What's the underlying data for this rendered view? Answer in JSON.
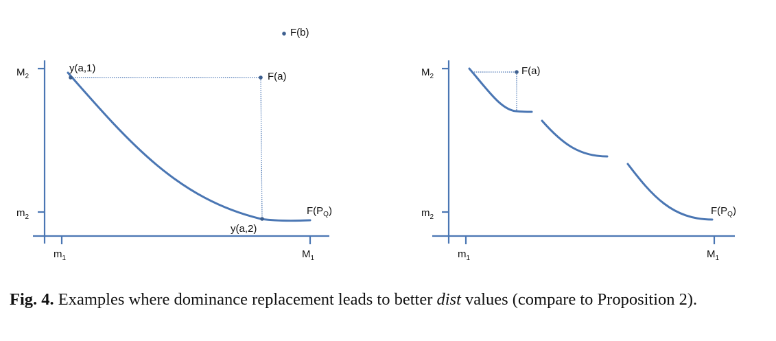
{
  "left_panel": {
    "y_tick_upper": {
      "base": "M",
      "sub": "2"
    },
    "y_tick_lower": {
      "base": "m",
      "sub": "2"
    },
    "x_tick_left": {
      "base": "m",
      "sub": "1"
    },
    "x_tick_right": {
      "base": "M",
      "sub": "1"
    },
    "points": {
      "F_b": "F(b)",
      "F_a": "F(a)",
      "y_a1": "y(a,1)",
      "y_a2": "y(a,2)",
      "F_PQ": {
        "base": "F(P",
        "sub": "Q",
        "end": ")"
      }
    }
  },
  "right_panel": {
    "y_tick_upper": {
      "base": "M",
      "sub": "2"
    },
    "y_tick_lower": {
      "base": "m",
      "sub": "2"
    },
    "x_tick_left": {
      "base": "m",
      "sub": "1"
    },
    "x_tick_right": {
      "base": "M",
      "sub": "1"
    },
    "points": {
      "F_a": "F(a)",
      "F_PQ": {
        "base": "F(P",
        "sub": "Q",
        "end": ")"
      }
    }
  },
  "caption": {
    "label": "Fig. 4.",
    "text_before": " Examples where dominance replacement leads to better ",
    "italic": "dist",
    "text_after": " values (compare to Proposition 2)."
  },
  "colors": {
    "line": "#4a76b3",
    "point": "#3d5f8f"
  }
}
